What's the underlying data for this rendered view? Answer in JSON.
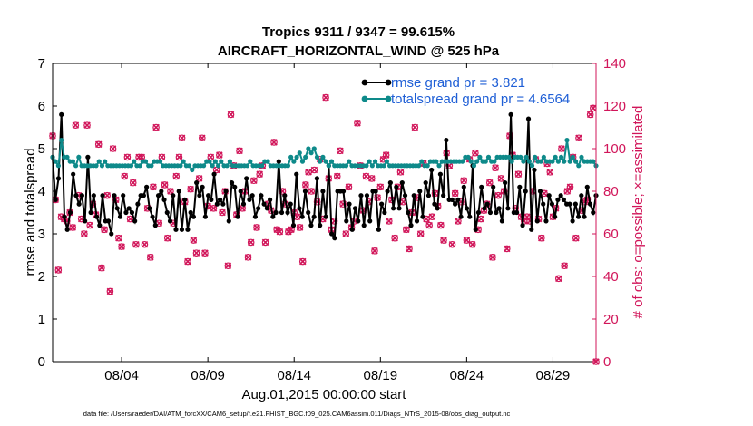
{
  "colors": {
    "rmse": "#000000",
    "spread": "#0e8a8a",
    "obs": "#d1165a",
    "legend_text": "#1f5fd6",
    "axis": "#000000"
  },
  "chart_data": {
    "type": "line",
    "title_line1": "Tropics 9311 / 9347 = 99.615%",
    "title_line2": "AIRCRAFT_HORIZONTAL_WIND @ 525 hPa",
    "xlabel": "Aug.01,2015 00:00:00 start",
    "ylabel_left": "rmse and totalspread",
    "ylabel_right": "# of obs: o=possible; ×=assimilated",
    "xlim": [
      0,
      31.5
    ],
    "ylim_left": [
      0,
      7
    ],
    "ylim_right": [
      0,
      140
    ],
    "yticks_left": [
      "0",
      "1",
      "2",
      "3",
      "4",
      "5",
      "6",
      "7"
    ],
    "yticks_right": [
      "0",
      "20",
      "40",
      "60",
      "80",
      "100",
      "120",
      "140"
    ],
    "xticks": [
      {
        "label": "08/04",
        "x": 4
      },
      {
        "label": "08/09",
        "x": 9
      },
      {
        "label": "08/14",
        "x": 14
      },
      {
        "label": "08/19",
        "x": 19
      },
      {
        "label": "08/24",
        "x": 24
      },
      {
        "label": "08/29",
        "x": 29
      }
    ],
    "legend": [
      {
        "name": "rmse grand pr = 3.821"
      },
      {
        "name": "totalspread grand pr = 4.6564"
      }
    ],
    "footer": "data file: /Users/raeder/DAI/ATM_forcXX/CAM6_setup/f.e21.FHIST_BGC.f09_025.CAM6assim.011/Diags_NTrS_2015-08/obs_diag_output.nc",
    "series": [
      {
        "name": "rmse",
        "values": [
          4.8,
          3.8,
          4.3,
          5.8,
          3.4,
          3.1,
          3.5,
          4.4,
          3.9,
          3.7,
          3.9,
          3.3,
          4.8,
          3.5,
          3.9,
          3.4,
          3.2,
          3.9,
          3.3,
          3.3,
          3.0,
          3.9,
          3.6,
          3.4,
          3.9,
          3.5,
          3.6,
          3.5,
          3.3,
          3.7,
          3.9,
          3.9,
          4.1,
          3.6,
          3.4,
          3.2,
          3.9,
          4.0,
          3.8,
          3.5,
          3.3,
          3.9,
          3.1,
          4.0,
          3.1,
          3.8,
          3.1,
          3.5,
          3.4,
          4.2,
          3.9,
          4.1,
          3.4,
          3.9,
          3.8,
          4.4,
          3.7,
          3.8,
          3.7,
          4.0,
          3.3,
          4.2,
          4.1,
          3.4,
          4.0,
          3.7,
          4.3,
          3.8,
          3.9,
          3.4,
          3.6,
          3.9,
          3.7,
          3.6,
          3.8,
          3.4,
          3.5,
          4.7,
          3.5,
          3.9,
          3.5,
          3.7,
          3.2,
          4.4,
          3.6,
          3.4,
          4.0,
          3.5,
          3.2,
          3.4,
          4.3,
          3.2,
          4.0,
          3.4,
          4.6,
          3.0,
          2.9,
          4.0,
          4.0,
          4.0,
          3.3,
          3.7,
          3.1,
          3.6,
          3.3,
          3.9,
          3.2,
          3.9,
          3.3,
          4.0,
          4.0,
          3.1,
          3.7,
          3.5,
          4.0,
          4.2,
          3.6,
          4.1,
          3.6,
          4.2,
          3.9,
          3.5,
          3.2,
          3.9,
          3.3,
          4.0,
          3.4,
          4.2,
          3.9,
          4.5,
          3.7,
          3.6,
          4.4,
          3.9,
          5.2,
          3.8,
          3.8,
          3.7,
          3.8,
          3.4,
          4.1,
          3.6,
          3.4,
          4.6,
          3.1,
          3.5,
          4.1,
          3.6,
          3.7,
          3.5,
          4.1,
          3.5,
          3.6,
          3.3,
          4.2,
          3.6,
          5.8,
          3.5,
          3.5,
          4.1,
          3.2,
          4.0,
          5.7,
          3.1,
          4.5,
          3.3,
          4.0,
          3.7,
          3.3,
          3.9,
          3.7,
          3.4,
          3.8,
          3.9,
          3.8,
          3.7,
          3.7,
          3.3,
          3.7,
          3.4,
          3.9,
          3.4,
          4.1,
          3.7,
          3.5,
          3.9
        ]
      },
      {
        "name": "totalspread",
        "values": [
          4.8,
          4.7,
          4.6,
          5.2,
          4.8,
          4.8,
          4.7,
          4.7,
          4.6,
          4.8,
          4.6,
          4.6,
          4.6,
          4.6,
          4.6,
          4.6,
          4.7,
          4.6,
          4.7,
          4.6,
          4.6,
          4.6,
          4.6,
          4.6,
          4.6,
          4.6,
          4.6,
          4.6,
          4.7,
          4.6,
          4.6,
          4.7,
          4.7,
          4.6,
          4.6,
          4.7,
          4.7,
          4.7,
          4.6,
          4.6,
          4.6,
          4.6,
          4.6,
          4.6,
          4.6,
          4.7,
          4.6,
          4.6,
          4.5,
          4.6,
          4.6,
          4.6,
          4.6,
          4.7,
          4.7,
          4.6,
          4.7,
          4.6,
          4.7,
          4.6,
          4.6,
          4.7,
          4.6,
          4.6,
          4.6,
          4.6,
          4.6,
          4.6,
          4.7,
          4.6,
          4.6,
          4.6,
          4.6,
          4.7,
          4.7,
          4.6,
          4.6,
          4.6,
          4.6,
          4.6,
          4.6,
          4.6,
          4.8,
          4.7,
          4.8,
          4.9,
          4.7,
          4.8,
          5.0,
          4.9,
          5.0,
          4.8,
          4.7,
          4.8,
          4.7,
          4.6,
          4.7,
          4.6,
          4.6,
          4.6,
          4.6,
          4.6,
          4.7,
          4.6,
          4.6,
          4.6,
          4.6,
          4.6,
          4.6,
          4.7,
          4.6,
          4.7,
          4.6,
          4.6,
          4.6,
          4.7,
          4.6,
          4.6,
          4.6,
          4.6,
          4.6,
          4.6,
          4.6,
          4.6,
          4.6,
          4.6,
          4.6,
          4.7,
          4.6,
          4.6,
          4.7,
          4.7,
          4.7,
          4.6,
          4.7,
          4.7,
          4.7,
          4.7,
          4.7,
          4.7,
          4.7,
          4.7,
          4.8,
          4.8,
          4.7,
          4.6,
          4.7,
          4.8,
          4.7,
          4.7,
          4.8,
          4.7,
          4.7,
          4.8,
          4.8,
          4.8,
          4.8,
          4.8,
          4.7,
          4.8,
          4.8,
          4.8,
          4.7,
          4.8,
          4.7,
          4.6,
          4.8,
          4.7,
          4.7,
          4.8,
          4.7,
          4.7,
          4.7,
          4.8,
          4.7,
          4.8,
          4.7,
          5.2,
          4.7,
          4.8,
          4.7,
          4.6,
          4.8,
          4.7,
          4.7,
          4.7,
          4.7,
          4.6
        ]
      }
    ],
    "obs_possible": [
      106,
      76,
      43,
      68,
      67,
      66,
      70,
      63,
      111,
      78,
      67,
      60,
      111,
      64,
      74,
      69,
      102,
      44,
      62,
      78,
      33,
      100,
      76,
      58,
      54,
      87,
      96,
      67,
      84,
      55,
      96,
      96,
      55,
      72,
      49,
      82,
      110,
      65,
      96,
      83,
      58,
      80,
      65,
      87,
      96,
      105,
      75,
      47,
      81,
      57,
      51,
      86,
      105,
      51,
      73,
      96,
      72,
      90,
      97,
      70,
      80,
      45,
      116,
      92,
      69,
      99,
      72,
      80,
      49,
      56,
      85,
      63,
      88,
      92,
      56,
      74,
      71,
      103,
      62,
      61,
      80,
      74,
      61,
      62,
      70,
      68,
      63,
      47,
      83,
      89,
      80,
      90,
      75,
      95,
      67,
      124,
      86,
      62,
      66,
      87,
      99,
      74,
      60,
      82,
      63,
      66,
      112,
      92,
      71,
      87,
      75,
      86,
      52,
      77,
      82,
      95,
      97,
      66,
      76,
      58,
      82,
      89,
      75,
      62,
      53,
      70,
      110,
      77,
      60,
      93,
      67,
      64,
      68,
      79,
      73,
      64,
      57,
      98,
      92,
      55,
      79,
      66,
      75,
      85,
      57,
      95,
      55,
      98,
      62,
      67,
      71,
      74,
      84,
      49,
      91,
      78,
      86,
      80,
      53,
      106,
      97,
      72,
      88,
      68,
      66,
      68,
      66,
      80,
      95,
      67,
      58,
      79,
      93,
      89,
      68,
      72,
      39,
      100,
      45,
      80,
      82,
      96,
      58,
      105,
      71,
      75,
      76,
      116,
      119,
      0
    ],
    "obs_assimilated": [
      106,
      76,
      43,
      68,
      67,
      66,
      70,
      63,
      111,
      78,
      67,
      60,
      111,
      64,
      74,
      69,
      102,
      44,
      62,
      78,
      33,
      100,
      76,
      58,
      54,
      87,
      96,
      67,
      84,
      55,
      96,
      96,
      55,
      72,
      49,
      82,
      110,
      65,
      96,
      83,
      58,
      80,
      65,
      87,
      96,
      105,
      75,
      47,
      81,
      57,
      51,
      86,
      105,
      51,
      73,
      96,
      72,
      90,
      97,
      70,
      80,
      45,
      116,
      92,
      69,
      99,
      72,
      80,
      49,
      56,
      85,
      63,
      88,
      92,
      56,
      74,
      71,
      103,
      62,
      61,
      80,
      74,
      61,
      62,
      70,
      68,
      63,
      47,
      83,
      89,
      80,
      90,
      75,
      95,
      67,
      124,
      86,
      62,
      66,
      87,
      99,
      74,
      60,
      82,
      63,
      66,
      112,
      92,
      71,
      87,
      75,
      86,
      52,
      77,
      82,
      95,
      97,
      66,
      76,
      58,
      82,
      89,
      75,
      62,
      53,
      70,
      110,
      77,
      60,
      93,
      67,
      64,
      68,
      79,
      73,
      64,
      57,
      98,
      92,
      55,
      79,
      66,
      75,
      85,
      57,
      95,
      55,
      98,
      62,
      67,
      71,
      74,
      84,
      49,
      91,
      78,
      86,
      80,
      53,
      106,
      97,
      72,
      88,
      68,
      66,
      68,
      66,
      80,
      95,
      67,
      58,
      79,
      93,
      89,
      68,
      72,
      39,
      100,
      45,
      80,
      82,
      96,
      58,
      105,
      71,
      75,
      76,
      116,
      119,
      0
    ]
  }
}
